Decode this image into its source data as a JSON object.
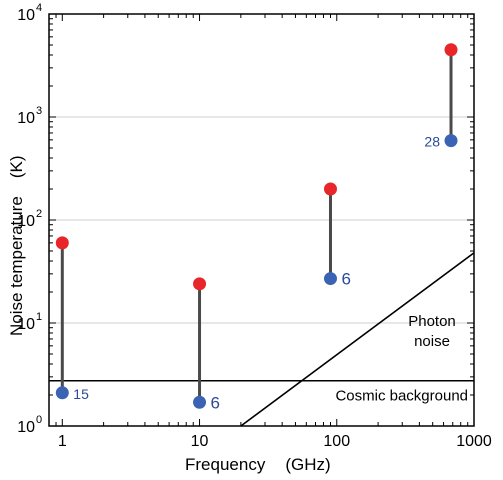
{
  "chart_data": {
    "type": "scatter",
    "xlabel": "Frequency",
    "xunit": "(GHz)",
    "ylabel": "Noise temperature",
    "yunit": "(K)",
    "xscale": "log",
    "yscale": "log",
    "xlim": [
      0.8,
      1000
    ],
    "ylim": [
      1,
      10000
    ],
    "xticks": [
      {
        "value": 1,
        "label": "1"
      },
      {
        "value": 10,
        "label": "10"
      },
      {
        "value": 100,
        "label": "100"
      },
      {
        "value": 1000,
        "label": "1000"
      }
    ],
    "yticks": [
      {
        "value": 1,
        "base": "10",
        "exp": "0"
      },
      {
        "value": 10,
        "base": "10",
        "exp": "1"
      },
      {
        "value": 100,
        "base": "10",
        "exp": "2"
      },
      {
        "value": 1000,
        "base": "10",
        "exp": "3"
      },
      {
        "value": 10000,
        "base": "10",
        "exp": "4"
      }
    ],
    "grid": "horizontal at decades",
    "colors": {
      "upper": "#e8262a",
      "lower": "#3b63b4",
      "stem": "#4a4a4a",
      "label": "#2d4a9a"
    },
    "points": [
      {
        "x": 1,
        "y_upper": 60,
        "y_lower": 2.1,
        "label": "15"
      },
      {
        "x": 10,
        "y_upper": 24,
        "y_lower": 1.7,
        "label": "6"
      },
      {
        "x": 90,
        "y_upper": 200,
        "y_lower": 27,
        "label": "6"
      },
      {
        "x": 680,
        "y_upper": 4500,
        "y_lower": 590,
        "label": "28"
      }
    ],
    "lines": [
      {
        "name": "cosmic-background",
        "label": "Cosmic background",
        "points": [
          [
            0.8,
            2.75
          ],
          [
            1000,
            2.75
          ]
        ]
      },
      {
        "name": "photon-noise",
        "label_lines": [
          "Photon",
          "noise"
        ],
        "points": [
          [
            20,
            1
          ],
          [
            1000,
            48
          ]
        ]
      }
    ]
  }
}
